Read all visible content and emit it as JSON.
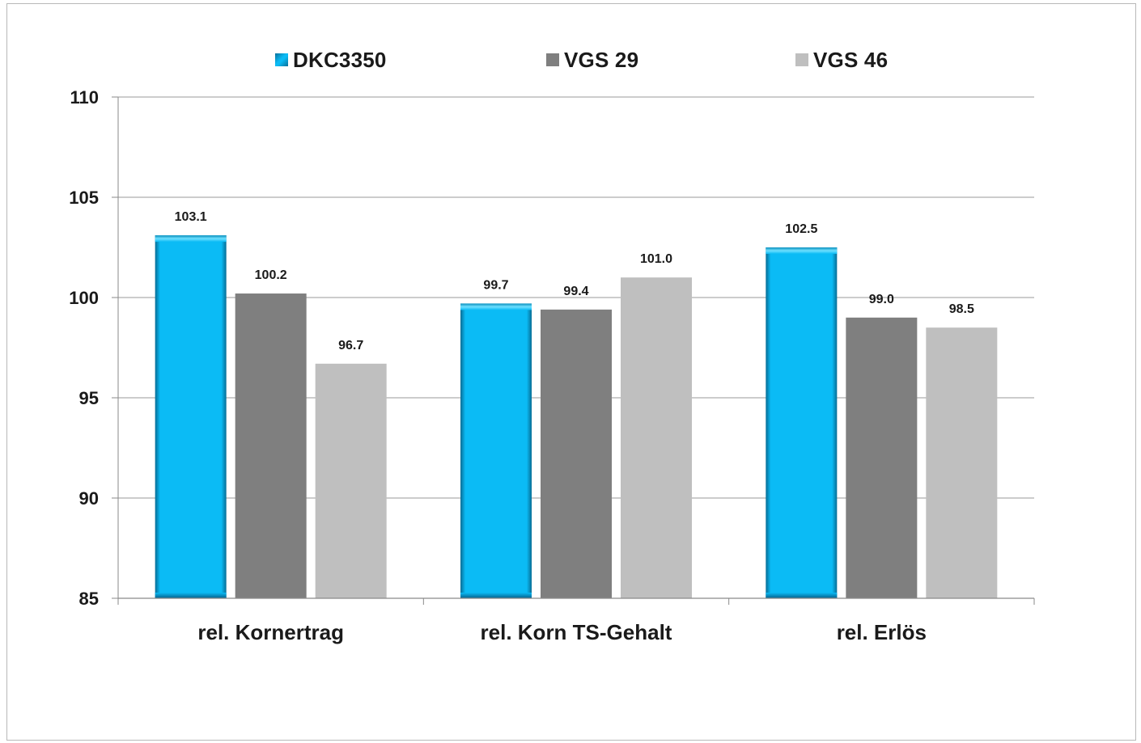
{
  "chart_data": {
    "type": "bar",
    "categories": [
      "rel. Kornertrag",
      "rel. Korn TS-Gehalt",
      "rel. Erlös"
    ],
    "series": [
      {
        "name": "DKC3350",
        "values": [
          103.1,
          99.7,
          102.5
        ],
        "labels": [
          "103.1",
          "99.7",
          "102.5"
        ],
        "color": "#0bbbf5"
      },
      {
        "name": "VGS 29",
        "values": [
          100.2,
          99.4,
          99.0
        ],
        "labels": [
          "100.2",
          "99.4",
          "99.0"
        ],
        "color": "#7f7f7f"
      },
      {
        "name": "VGS 46",
        "values": [
          96.7,
          101.0,
          98.5
        ],
        "labels": [
          "96.7",
          "101.0",
          "98.5"
        ],
        "color": "#bfbfbf"
      }
    ],
    "yticks": [
      "85",
      "90",
      "95",
      "100",
      "105",
      "110"
    ],
    "ylim": [
      85,
      110
    ],
    "grid": true,
    "legend": "top"
  }
}
